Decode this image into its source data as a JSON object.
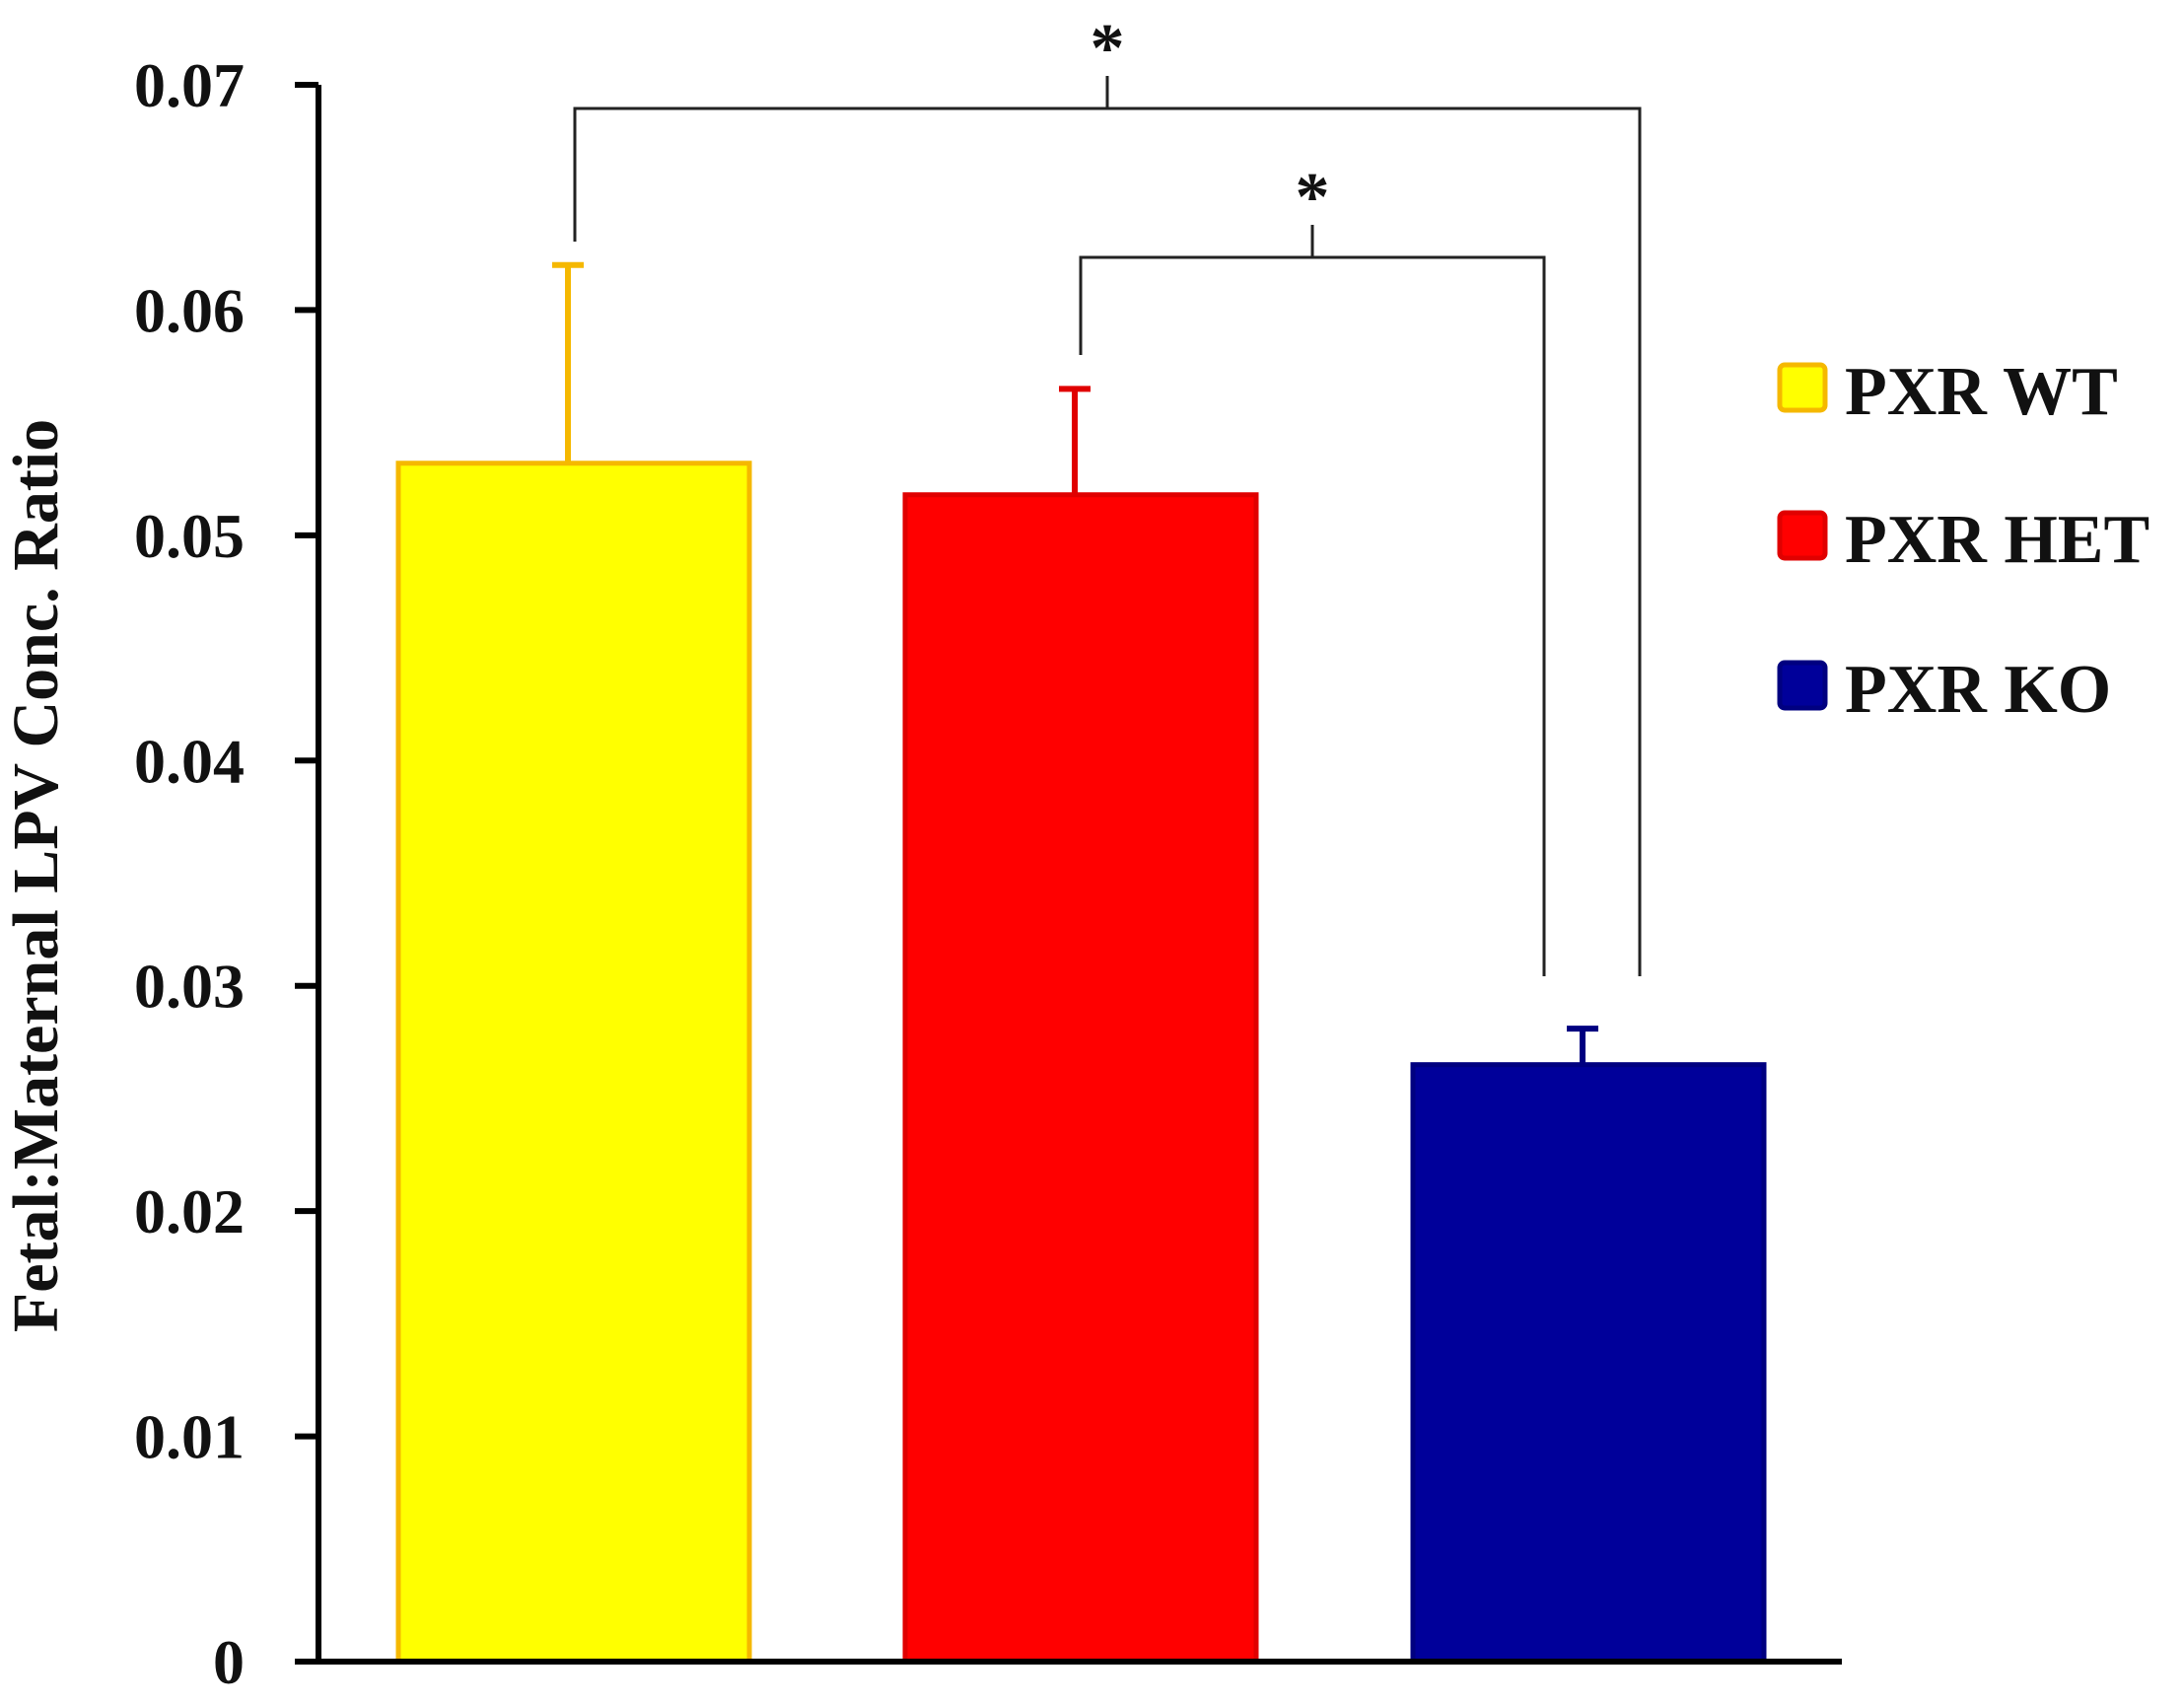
{
  "chart_data": {
    "type": "bar",
    "title": "",
    "xlabel": "",
    "ylabel": "Fetal:Maternal LPV Conc. Ratio",
    "ylim": [
      0,
      0.07
    ],
    "yticks": [
      "0",
      "0.01",
      "0.02",
      "0.03",
      "0.04",
      "0.05",
      "0.06",
      "0.07"
    ],
    "grid": false,
    "legend_position": "right",
    "series": [
      {
        "name": "PXR WT",
        "value": 0.0532,
        "error": 0.0088,
        "color": "#FFFF00",
        "edge": "#F5B800"
      },
      {
        "name": "PXR HET",
        "value": 0.0518,
        "error": 0.0047,
        "color": "#FF0000",
        "edge": "#E00000"
      },
      {
        "name": "PXR KO",
        "value": 0.0265,
        "error": 0.0016,
        "color": "#00009A",
        "edge": "#000080"
      }
    ],
    "significance": [
      {
        "from": "PXR WT",
        "to": "PXR KO",
        "label": "*"
      },
      {
        "from": "PXR HET",
        "to": "PXR KO",
        "label": "*"
      }
    ]
  }
}
